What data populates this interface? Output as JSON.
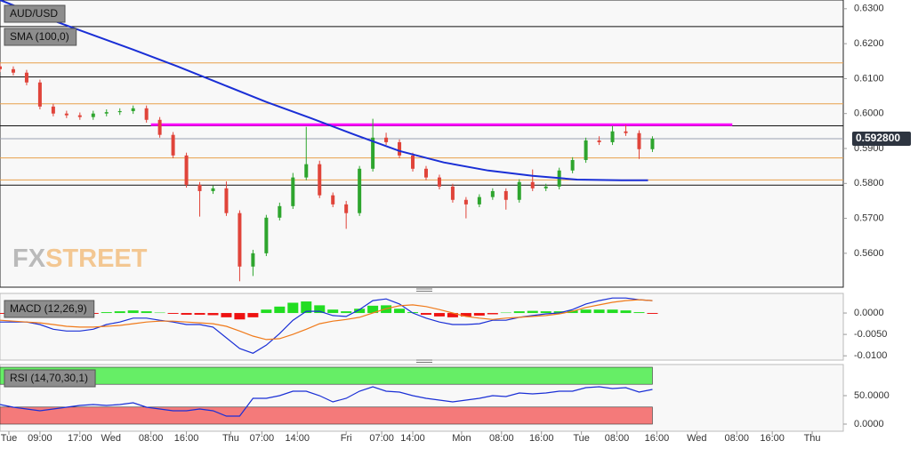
{
  "chart_data": [
    {
      "type": "candlestick",
      "title": "AUD/USD",
      "x": [
        0,
        3,
        6,
        9,
        12,
        15,
        18,
        21,
        24,
        27,
        30,
        33,
        36,
        39,
        42,
        45,
        48,
        51,
        54,
        57,
        60,
        63,
        66,
        69,
        72,
        75,
        78,
        81,
        84,
        87,
        90,
        93,
        96,
        99,
        102,
        105,
        108,
        111,
        114,
        117,
        120,
        123,
        126,
        129,
        132,
        135,
        138,
        141,
        144,
        147
      ],
      "open": [
        0.6135,
        0.6127,
        0.6117,
        0.6089,
        0.602,
        0.6,
        0.5995,
        0.599,
        0.6,
        0.6004,
        0.6007,
        0.6015,
        0.5982,
        0.5939,
        0.588,
        0.5796,
        0.5778,
        0.5786,
        0.5715,
        0.5562,
        0.56,
        0.5702,
        0.5735,
        0.5817,
        0.5855,
        0.5766,
        0.574,
        0.5715,
        0.5842,
        0.5931,
        0.5918,
        0.588,
        0.5842,
        0.5817,
        0.5791,
        0.5753,
        0.574,
        0.5761,
        0.5778,
        0.5753,
        0.5804,
        0.5786,
        0.5791,
        0.5837,
        0.5867,
        0.5923,
        0.5918,
        0.5949,
        0.5944,
        0.5898
      ],
      "high": [
        0.6143,
        0.6135,
        0.6125,
        0.6097,
        0.6028,
        0.6008,
        0.6003,
        0.6008,
        0.6012,
        0.6015,
        0.6023,
        0.6023,
        0.599,
        0.5947,
        0.5888,
        0.5804,
        0.5794,
        0.5806,
        0.5723,
        0.561,
        0.571,
        0.5745,
        0.583,
        0.5962,
        0.5865,
        0.5774,
        0.575,
        0.585,
        0.5985,
        0.5945,
        0.5926,
        0.5888,
        0.585,
        0.5825,
        0.5799,
        0.5761,
        0.5769,
        0.5786,
        0.5786,
        0.5812,
        0.584,
        0.5799,
        0.5845,
        0.5875,
        0.5931,
        0.5935,
        0.5965,
        0.5968,
        0.5952,
        0.5935
      ],
      "low": [
        0.6119,
        0.6109,
        0.6081,
        0.6012,
        0.5992,
        0.5987,
        0.5982,
        0.5982,
        0.5992,
        0.5996,
        0.5999,
        0.5974,
        0.5931,
        0.5872,
        0.5788,
        0.5705,
        0.577,
        0.5707,
        0.552,
        0.5535,
        0.5592,
        0.5694,
        0.5727,
        0.5809,
        0.5758,
        0.5732,
        0.567,
        0.5707,
        0.5834,
        0.591,
        0.5872,
        0.5834,
        0.5809,
        0.5783,
        0.5745,
        0.57,
        0.5732,
        0.5753,
        0.5725,
        0.5745,
        0.5778,
        0.5778,
        0.5783,
        0.5829,
        0.5859,
        0.591,
        0.591,
        0.5936,
        0.587,
        0.589
      ],
      "close": [
        0.6127,
        0.6117,
        0.6089,
        0.602,
        0.6,
        0.5995,
        0.599,
        0.6,
        0.6004,
        0.6007,
        0.6015,
        0.5982,
        0.5939,
        0.588,
        0.5796,
        0.5778,
        0.5786,
        0.5715,
        0.5562,
        0.56,
        0.5702,
        0.5735,
        0.5817,
        0.5855,
        0.5766,
        0.574,
        0.5715,
        0.5842,
        0.5931,
        0.5918,
        0.588,
        0.5842,
        0.5817,
        0.5791,
        0.5753,
        0.574,
        0.5761,
        0.5778,
        0.5753,
        0.5804,
        0.5786,
        0.5791,
        0.5837,
        0.5867,
        0.5923,
        0.5918,
        0.5949,
        0.5944,
        0.5898,
        0.5928
      ],
      "up_color": "#2ea52e",
      "down_color": "#e0443a",
      "xlim": [
        0,
        190
      ],
      "xticks": [
        {
          "value": 2,
          "label": "Tue"
        },
        {
          "value": 9,
          "label": "09:00"
        },
        {
          "value": 18,
          "label": "17:00"
        },
        {
          "value": 25,
          "label": "Wed"
        },
        {
          "value": 34,
          "label": "08:00"
        },
        {
          "value": 42,
          "label": "16:00"
        },
        {
          "value": 52,
          "label": "Thu"
        },
        {
          "value": 59,
          "label": "07:00"
        },
        {
          "value": 67,
          "label": "14:00"
        },
        {
          "value": 78,
          "label": "Fri"
        },
        {
          "value": 86,
          "label": "07:00"
        },
        {
          "value": 93,
          "label": "14:00"
        },
        {
          "value": 104,
          "label": "Mon"
        },
        {
          "value": 113,
          "label": "08:00"
        },
        {
          "value": 122,
          "label": "16:00"
        },
        {
          "value": 131,
          "label": "Tue"
        },
        {
          "value": 139,
          "label": "08:00"
        },
        {
          "value": 148,
          "label": "16:00"
        },
        {
          "value": 157,
          "label": "Wed"
        },
        {
          "value": 166,
          "label": "08:00"
        },
        {
          "value": 174,
          "label": "16:00"
        },
        {
          "value": 183,
          "label": "Thu"
        }
      ],
      "ylim": [
        0.5503,
        0.6325
      ],
      "yticks": [
        {
          "value": 0.63,
          "label": "0.6300"
        },
        {
          "value": 0.62,
          "label": "0.6200"
        },
        {
          "value": 0.61,
          "label": "0.6100"
        },
        {
          "value": 0.6,
          "label": "0.6000"
        },
        {
          "value": 0.59,
          "label": "0.5900"
        },
        {
          "value": 0.58,
          "label": "0.5800"
        },
        {
          "value": 0.57,
          "label": "0.5700"
        },
        {
          "value": 0.56,
          "label": "0.5600"
        }
      ],
      "sma": {
        "name": "SMA (100,0)",
        "color": "#1a2fd6",
        "x": [
          0,
          10,
          20,
          30,
          40,
          50,
          60,
          70,
          80,
          90,
          100,
          110,
          120,
          130,
          140,
          146
        ],
        "values": [
          0.6325,
          0.6275,
          0.6229,
          0.6183,
          0.6135,
          0.6084,
          0.6033,
          0.5987,
          0.5939,
          0.5893,
          0.586,
          0.5837,
          0.5822,
          0.5811,
          0.5809,
          0.5809
        ]
      },
      "levels": [
        {
          "value": 0.6249,
          "color": "#111111"
        },
        {
          "value": 0.6105,
          "color": "#111111"
        },
        {
          "value": 0.5965,
          "color": "#111111"
        },
        {
          "value": 0.5795,
          "color": "#111111"
        },
        {
          "value": 0.6145,
          "color": "#e8a04a"
        },
        {
          "value": 0.6028,
          "color": "#e8a04a"
        },
        {
          "value": 0.5873,
          "color": "#e8a04a"
        },
        {
          "value": 0.581,
          "color": "#e8a04a"
        }
      ],
      "highlight": {
        "value": 0.5968,
        "color": "#ff00ff",
        "x": [
          34,
          165
        ]
      },
      "last_price": {
        "value": 0.5928,
        "label": "0.592800"
      },
      "watermark": [
        "FX",
        "STREET"
      ]
    },
    {
      "type": "macd",
      "title": "MACD (12,26,9)",
      "ylim": [
        -0.011,
        0.00458
      ],
      "yticks": [
        {
          "value": 0,
          "label": "0.0000"
        },
        {
          "value": -0.005,
          "label": "-0.0050"
        },
        {
          "value": -0.01,
          "label": "-0.0100"
        }
      ],
      "histogram": {
        "up_color": "#22dd22",
        "down_color": "#ee1111",
        "values": [
          -0.0002,
          -0.0002,
          0,
          -0.0002,
          -0.0004,
          -0.0004,
          -0.0003,
          -0.0002,
          0.0002,
          0.0004,
          0.0006,
          0.0004,
          0.0001,
          -0.0002,
          -0.0004,
          -0.0004,
          -0.0005,
          -0.001,
          -0.0015,
          -0.001,
          0.0008,
          0.0015,
          0.0024,
          0.0027,
          0.0018,
          0.0008,
          0.0004,
          0.001,
          0.0017,
          0.0018,
          0.001,
          0.0002,
          -0.0004,
          -0.0008,
          -0.001,
          -0.0008,
          -0.0006,
          -0.0003,
          0.0001,
          0.0004,
          0.0005,
          0.0004,
          0.0004,
          0.0006,
          0.0008,
          0.0008,
          0.0008,
          0.0006,
          0.0002,
          -0.0002
        ]
      },
      "series": [
        {
          "color": "#1a2fd6",
          "values": [
            -0.0021,
            -0.0021,
            -0.0021,
            -0.0027,
            -0.0038,
            -0.0042,
            -0.0042,
            -0.0038,
            -0.0027,
            -0.0021,
            -0.0012,
            -0.0012,
            -0.0017,
            -0.0021,
            -0.0027,
            -0.0027,
            -0.0033,
            -0.0058,
            -0.0083,
            -0.0094,
            -0.0075,
            -0.0048,
            -0.0017,
            0.0004,
            0.0004,
            -0.0006,
            -0.0008,
            0.0008,
            0.0029,
            0.0033,
            0.0021,
            0,
            -0.0012,
            -0.0021,
            -0.0027,
            -0.0027,
            -0.0025,
            -0.0017,
            -0.0017,
            -0.001,
            -0.0006,
            -0.0002,
            0,
            0.0008,
            0.0021,
            0.0029,
            0.0035,
            0.0035,
            0.0031,
            0.0029
          ]
        },
        {
          "color": "#f07a1a",
          "values": [
            -0.0017,
            -0.0019,
            -0.0021,
            -0.0023,
            -0.0027,
            -0.0031,
            -0.0033,
            -0.0033,
            -0.0031,
            -0.0029,
            -0.0025,
            -0.0021,
            -0.0019,
            -0.0019,
            -0.0021,
            -0.0023,
            -0.0025,
            -0.0031,
            -0.0042,
            -0.0054,
            -0.0062,
            -0.006,
            -0.005,
            -0.0038,
            -0.0025,
            -0.0019,
            -0.0015,
            -0.001,
            0,
            0.001,
            0.0017,
            0.0019,
            0.0015,
            0.0008,
            0,
            -0.0008,
            -0.0012,
            -0.0015,
            -0.0012,
            -0.001,
            -0.0008,
            -0.0006,
            -0.0002,
            0.0004,
            0.0013,
            0.0019,
            0.0025,
            0.0029,
            0.0031,
            0.0029
          ]
        }
      ]
    },
    {
      "type": "rsi",
      "title": "RSI (14,70,30,1)",
      "ylim": [
        -12.5,
        104.7
      ],
      "yticks": [
        {
          "value": 50,
          "label": "50.0000"
        },
        {
          "value": 0,
          "label": "0.0000"
        }
      ],
      "bands": [
        {
          "from": 70,
          "to": 100,
          "color": "#66ee66"
        },
        {
          "from": 0,
          "to": 30,
          "color": "#f47a7a"
        }
      ],
      "series": [
        {
          "color": "#1a2fd6",
          "values": [
            34.4,
            29.7,
            26.6,
            23.4,
            26.6,
            29.7,
            32.8,
            34.4,
            32.8,
            34.4,
            37.5,
            29.7,
            26.6,
            23.4,
            23.4,
            26.6,
            23.4,
            14.1,
            14.1,
            45.3,
            45.3,
            50,
            57.8,
            57.8,
            50,
            39.1,
            45.3,
            57.8,
            65.6,
            57.8,
            56.3,
            50,
            45.3,
            42.2,
            39.1,
            42.2,
            45.3,
            50,
            48.4,
            54.7,
            53.1,
            54.7,
            57.8,
            57.8,
            64.1,
            65.6,
            62.5,
            64.1,
            56.3,
            60.9
          ]
        }
      ]
    }
  ]
}
